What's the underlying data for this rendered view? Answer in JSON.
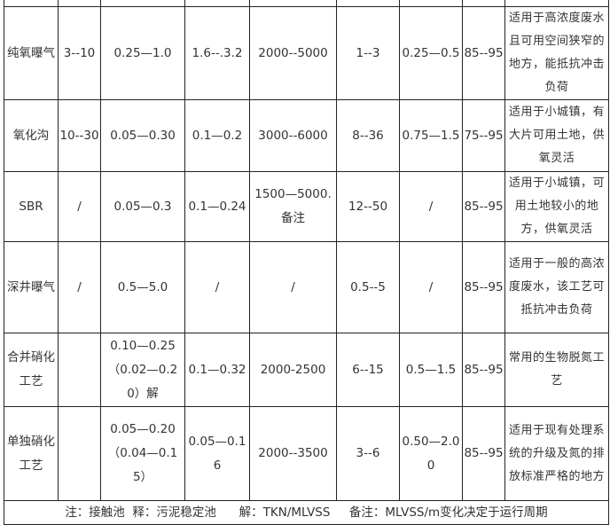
{
  "rows": [
    [
      "纯氧曝气",
      "3--10",
      "0.25—1.0",
      "1.6--.3.2",
      "2000--5000",
      "1--3",
      "0.25—0.5",
      "85--95",
      "适用于高浓度废水且可用空间狭窄的地方，能抵抗冲击负荷"
    ],
    [
      "氧化沟",
      "10--30",
      "0.05—0.30",
      "0.1—0.2",
      "3000--6000",
      "8--36",
      "0.75—1.5",
      "75--95",
      "适用于小城镇，有大片可用土地，供氧灵活"
    ],
    [
      "SBR",
      "/",
      "0.05—0.3",
      "0.1—0.24",
      "1500—5000.备注",
      "12--50",
      "/",
      "85--95",
      "适用于小城镇，可用土地较小的地方，供氧灵活"
    ],
    [
      "深井曝气",
      "/",
      "0.5—5.0",
      "/",
      "/",
      "0.5--5",
      "/",
      "85--95",
      "适用于一般的高浓度废水，该工艺可抵抗冲击负荷"
    ],
    [
      "合并硝化工艺",
      "",
      "0.10—0.25（0.02—0.20）解",
      "0.1—0.32",
      "2000-2500",
      "6--15",
      "0.5—1.5",
      "85--95",
      "常用的生物脱氮工艺"
    ],
    [
      "单独硝化工艺",
      "",
      "0.05—0.20（0.04—0.15）",
      "0.05—0.16",
      "2000--3500",
      "3--6",
      "0.50—2.00",
      "85--95",
      "适用于现有处理系统的升级及氮的排放标准严格的地方"
    ]
  ],
  "footnote": "注：接触池  释：污泥稳定池      解：TKN/MLVSS     备注：MLVSS/m变化决定于运行周期"
}
